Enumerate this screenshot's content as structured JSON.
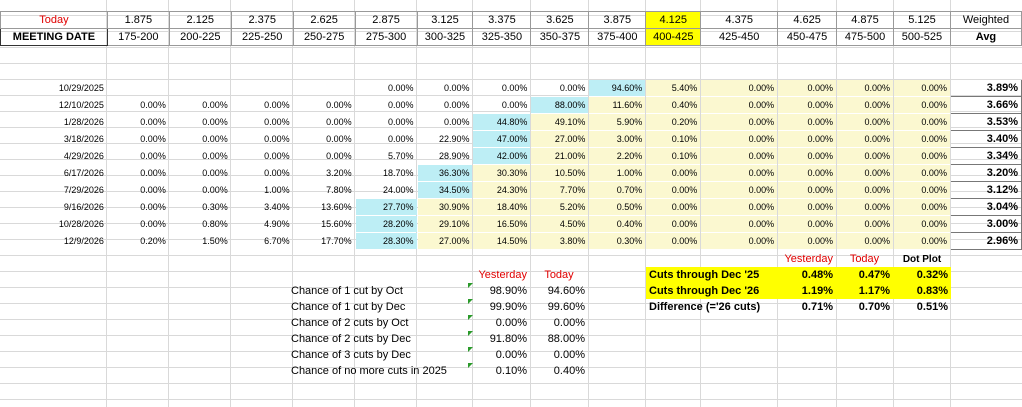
{
  "header": {
    "today_label": "Today",
    "rates": [
      "1.875",
      "2.125",
      "2.375",
      "2.625",
      "2.875",
      "3.125",
      "3.375",
      "3.625",
      "3.875",
      "4.125",
      "4.375",
      "4.625",
      "4.875",
      "5.125"
    ],
    "weighted_label": "Weighted",
    "meeting_date_label": "MEETING DATE",
    "ranges": [
      "175-200",
      "200-225",
      "225-250",
      "250-275",
      "275-300",
      "300-325",
      "325-350",
      "350-375",
      "375-400",
      "400-425",
      "425-450",
      "450-475",
      "475-500",
      "500-525"
    ],
    "avg_label": "Avg"
  },
  "rows": [
    {
      "date": "10/29/2025",
      "cells": [
        "",
        "",
        "",
        "",
        "0.00%",
        "0.00%",
        "0.00%",
        "0.00%",
        "94.60%",
        "5.40%",
        "0.00%",
        "0.00%",
        "0.00%",
        "0.00%"
      ],
      "avg": "3.89%"
    },
    {
      "date": "12/10/2025",
      "cells": [
        "0.00%",
        "0.00%",
        "0.00%",
        "0.00%",
        "0.00%",
        "0.00%",
        "0.00%",
        "88.00%",
        "11.60%",
        "0.40%",
        "0.00%",
        "0.00%",
        "0.00%",
        "0.00%"
      ],
      "avg": "3.66%"
    },
    {
      "date": "1/28/2026",
      "cells": [
        "0.00%",
        "0.00%",
        "0.00%",
        "0.00%",
        "0.00%",
        "0.00%",
        "44.80%",
        "49.10%",
        "5.90%",
        "0.20%",
        "0.00%",
        "0.00%",
        "0.00%",
        "0.00%"
      ],
      "avg": "3.53%"
    },
    {
      "date": "3/18/2026",
      "cells": [
        "0.00%",
        "0.00%",
        "0.00%",
        "0.00%",
        "0.00%",
        "22.90%",
        "47.00%",
        "27.00%",
        "3.00%",
        "0.10%",
        "0.00%",
        "0.00%",
        "0.00%",
        "0.00%"
      ],
      "avg": "3.40%"
    },
    {
      "date": "4/29/2026",
      "cells": [
        "0.00%",
        "0.00%",
        "0.00%",
        "0.00%",
        "5.70%",
        "28.90%",
        "42.00%",
        "21.00%",
        "2.20%",
        "0.10%",
        "0.00%",
        "0.00%",
        "0.00%",
        "0.00%"
      ],
      "avg": "3.34%"
    },
    {
      "date": "6/17/2026",
      "cells": [
        "0.00%",
        "0.00%",
        "0.00%",
        "3.20%",
        "18.70%",
        "36.30%",
        "30.30%",
        "10.50%",
        "1.00%",
        "0.00%",
        "0.00%",
        "0.00%",
        "0.00%",
        "0.00%"
      ],
      "avg": "3.20%"
    },
    {
      "date": "7/29/2026",
      "cells": [
        "0.00%",
        "0.00%",
        "1.00%",
        "7.80%",
        "24.00%",
        "34.50%",
        "24.30%",
        "7.70%",
        "0.70%",
        "0.00%",
        "0.00%",
        "0.00%",
        "0.00%",
        "0.00%"
      ],
      "avg": "3.12%"
    },
    {
      "date": "9/16/2026",
      "cells": [
        "0.00%",
        "0.30%",
        "3.40%",
        "13.60%",
        "27.70%",
        "30.90%",
        "18.40%",
        "5.20%",
        "0.50%",
        "0.00%",
        "0.00%",
        "0.00%",
        "0.00%",
        "0.00%"
      ],
      "avg": "3.04%"
    },
    {
      "date": "10/28/2026",
      "cells": [
        "0.00%",
        "0.80%",
        "4.90%",
        "15.60%",
        "28.20%",
        "29.10%",
        "16.50%",
        "4.50%",
        "0.40%",
        "0.00%",
        "0.00%",
        "0.00%",
        "0.00%",
        "0.00%"
      ],
      "avg": "3.00%"
    },
    {
      "date": "12/9/2026",
      "cells": [
        "0.20%",
        "1.50%",
        "6.70%",
        "17.70%",
        "28.30%",
        "27.00%",
        "14.50%",
        "3.80%",
        "0.30%",
        "0.00%",
        "0.00%",
        "0.00%",
        "0.00%",
        "0.00%"
      ],
      "avg": "2.96%"
    }
  ],
  "highlights": {
    "blue": [
      [
        0,
        8
      ],
      [
        1,
        7
      ],
      [
        2,
        6
      ],
      [
        3,
        6
      ],
      [
        4,
        6
      ],
      [
        5,
        5
      ],
      [
        6,
        5
      ],
      [
        7,
        4
      ],
      [
        8,
        4
      ],
      [
        9,
        4
      ]
    ],
    "light_yellow_from": [
      [
        0,
        9
      ],
      [
        1,
        8
      ],
      [
        2,
        7
      ],
      [
        3,
        7
      ],
      [
        4,
        7
      ],
      [
        5,
        6
      ],
      [
        6,
        6
      ],
      [
        7,
        5
      ],
      [
        8,
        5
      ],
      [
        9,
        5
      ]
    ]
  },
  "cuts_table": {
    "yesterday_label": "Yesterday",
    "today_label": "Today",
    "rows": [
      {
        "label": "Chance of 1 cut by Oct",
        "yesterday": "98.90%",
        "today": "94.60%"
      },
      {
        "label": "Chance of 1 cut by Dec",
        "yesterday": "99.90%",
        "today": "99.60%"
      },
      {
        "label": "Chance of 2 cuts by Oct",
        "yesterday": "0.00%",
        "today": "0.00%"
      },
      {
        "label": "Chance of 2 cuts by Dec",
        "yesterday": "91.80%",
        "today": "88.00%"
      },
      {
        "label": "Chance of 3 cuts by Dec",
        "yesterday": "0.00%",
        "today": "0.00%"
      },
      {
        "label": "Chance of no more cuts in 2025",
        "yesterday": "0.10%",
        "today": "0.40%"
      }
    ]
  },
  "summary_table": {
    "yesterday_label": "Yesterday",
    "today_label": "Today",
    "dot_plot_label": "Dot Plot",
    "rows": [
      {
        "label": "Cuts through Dec '25",
        "yesterday": "0.48%",
        "today": "0.47%",
        "dot_plot": "0.32%"
      },
      {
        "label": "Cuts through Dec '26",
        "yesterday": "1.19%",
        "today": "1.17%",
        "dot_plot": "0.83%"
      },
      {
        "label": "Difference (='26 cuts)",
        "yesterday": "0.71%",
        "today": "0.70%",
        "dot_plot": "0.51%"
      }
    ]
  },
  "colors": {
    "highlight_yellow": "#ffff00",
    "light_yellow": "#fbf8d0",
    "light_blue": "#bdeef5",
    "red": "#e00000",
    "green_marker": "#2a9a2a"
  }
}
